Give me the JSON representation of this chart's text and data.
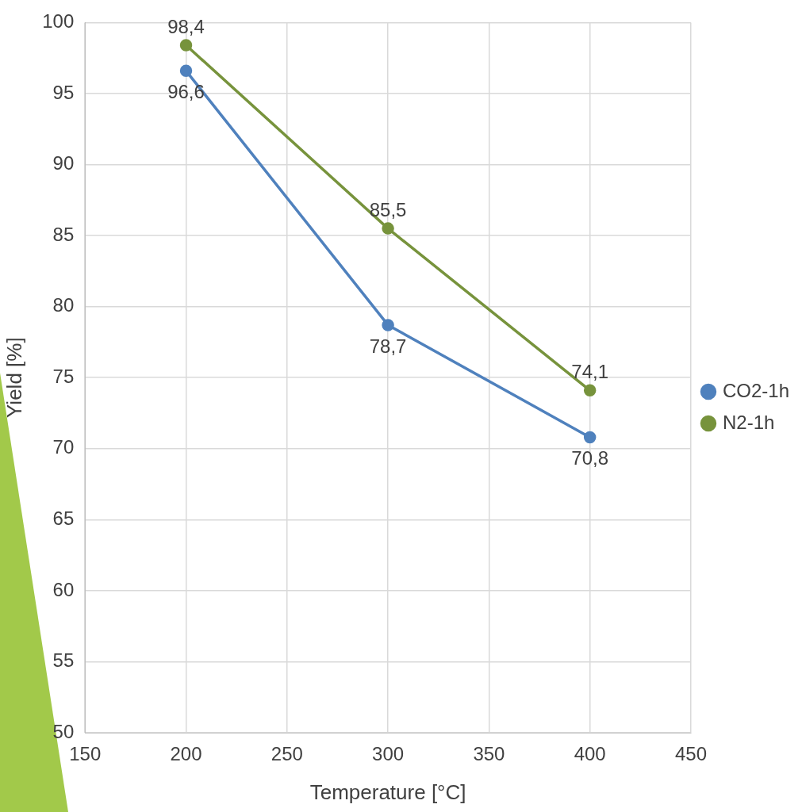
{
  "chart_data": {
    "type": "line",
    "xlabel": "Temperature [°C]",
    "ylabel": "Yield [%]",
    "x": [
      200,
      300,
      400
    ],
    "series": [
      {
        "name": "CO2-1h",
        "color": "#4f81bd",
        "values": [
          96.6,
          78.7,
          70.8
        ],
        "value_labels": [
          "96,6",
          "78,7",
          "70,8"
        ]
      },
      {
        "name": "N2-1h",
        "color": "#77933c",
        "values": [
          98.4,
          85.5,
          74.1
        ],
        "value_labels": [
          "98,4",
          "85,5",
          "74,1"
        ]
      }
    ],
    "xlim": [
      150,
      450
    ],
    "xticks": [
      150,
      200,
      250,
      300,
      350,
      400,
      450
    ],
    "ylim": [
      50,
      100
    ],
    "yticks": [
      50,
      55,
      60,
      65,
      70,
      75,
      80,
      85,
      90,
      95,
      100
    ],
    "grid": true,
    "legend": "right",
    "marker": "circle",
    "line_style": "solid"
  }
}
